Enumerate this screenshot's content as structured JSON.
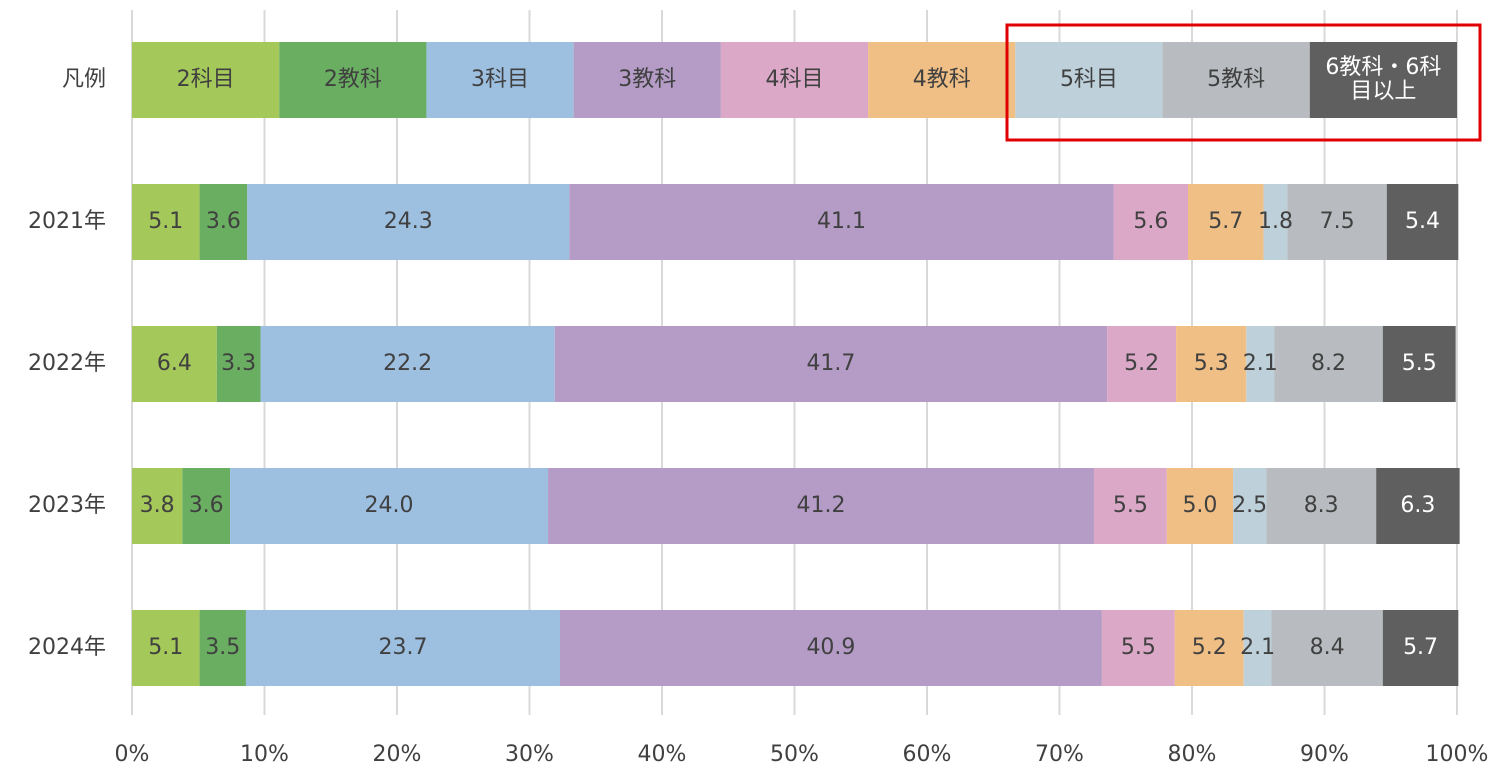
{
  "chart_data": {
    "type": "stacked_bar_horizontal_percent",
    "legend_title": "凡例",
    "categories": [
      "2021年",
      "2022年",
      "2023年",
      "2024年"
    ],
    "series": [
      {
        "name": "2科目",
        "color": "#a5c85a",
        "values": [
          5.1,
          6.4,
          3.8,
          5.1
        ],
        "value_labels": [
          "5.1",
          "6.4",
          "3.8",
          "5.1"
        ]
      },
      {
        "name": "2教科",
        "color": "#6aae62",
        "values": [
          3.6,
          3.3,
          3.6,
          3.5
        ],
        "value_labels": [
          "3.6",
          "3.3",
          "3.6",
          "3.5"
        ]
      },
      {
        "name": "3科目",
        "color": "#9dbfe0",
        "values": [
          24.3,
          22.2,
          24.0,
          23.7
        ],
        "value_labels": [
          "24.3",
          "22.2",
          "24.0",
          "23.7"
        ]
      },
      {
        "name": "3教科",
        "color": "#b49cc6",
        "values": [
          41.1,
          41.7,
          41.2,
          40.9
        ],
        "value_labels": [
          "41.1",
          "41.7",
          "41.2",
          "40.9"
        ]
      },
      {
        "name": "4科目",
        "color": "#dca8c8",
        "values": [
          5.6,
          5.2,
          5.5,
          5.5
        ],
        "value_labels": [
          "5.6",
          "5.2",
          "5.5",
          "5.5"
        ]
      },
      {
        "name": "4教科",
        "color": "#f0bf86",
        "values": [
          5.7,
          5.3,
          5.0,
          5.2
        ],
        "value_labels": [
          "5.7",
          "5.3",
          "5.0",
          "5.2"
        ]
      },
      {
        "name": "5科目",
        "color": "#bed0da",
        "values": [
          1.8,
          2.1,
          2.5,
          2.1
        ],
        "value_labels": [
          "1.8",
          "2.1",
          "2.5",
          "2.1"
        ]
      },
      {
        "name": "5教科",
        "color": "#b8bcc0",
        "values": [
          7.5,
          8.2,
          8.3,
          8.4
        ],
        "value_labels": [
          "7.5",
          "8.2",
          "8.3",
          "8.4"
        ]
      },
      {
        "name": "6教科・6科目以上",
        "color": "#5f5f5f",
        "values": [
          5.4,
          5.5,
          6.3,
          5.7
        ],
        "value_labels": [
          "5.4",
          "5.5",
          "6.3",
          "5.7"
        ]
      }
    ],
    "xlim": [
      0,
      100
    ],
    "xticks": [
      {
        "value": 0,
        "label": "0%"
      },
      {
        "value": 10,
        "label": "10%"
      },
      {
        "value": 20,
        "label": "20%"
      },
      {
        "value": 30,
        "label": "30%"
      },
      {
        "value": 40,
        "label": "40%"
      },
      {
        "value": 50,
        "label": "50%"
      },
      {
        "value": 60,
        "label": "60%"
      },
      {
        "value": 70,
        "label": "70%"
      },
      {
        "value": 80,
        "label": "80%"
      },
      {
        "value": 90,
        "label": "90%"
      },
      {
        "value": 100,
        "label": "100%"
      }
    ],
    "grid": true
  }
}
